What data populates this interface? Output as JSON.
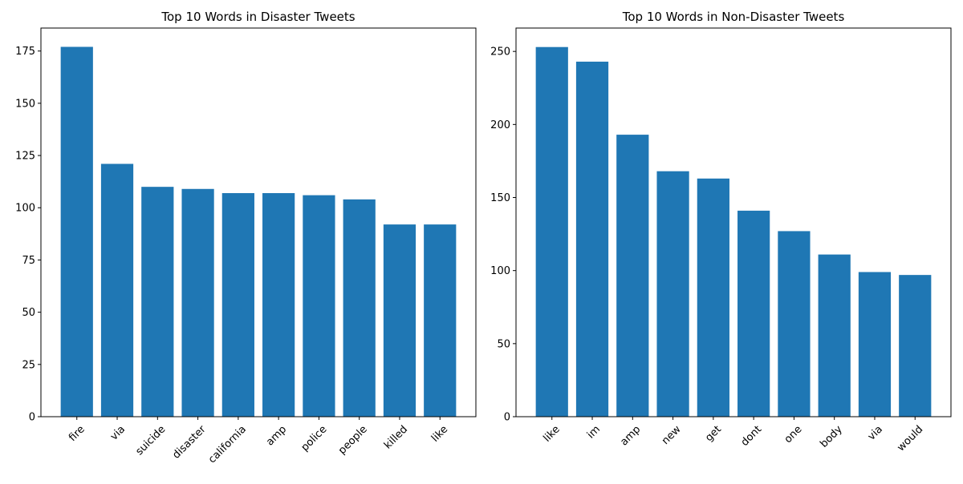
{
  "chart_data": [
    {
      "type": "bar",
      "title": "Top 10 Words in Disaster Tweets",
      "xlabel": "",
      "ylabel": "",
      "categories": [
        "fire",
        "via",
        "suicide",
        "disaster",
        "california",
        "amp",
        "police",
        "people",
        "killed",
        "like"
      ],
      "values": [
        177,
        121,
        110,
        109,
        107,
        107,
        106,
        104,
        92,
        92
      ],
      "ylim": [
        0,
        186
      ],
      "yticks": [
        0,
        25,
        50,
        75,
        100,
        125,
        150,
        175
      ],
      "grid": false,
      "legend": "none",
      "bar_color": "#1f77b4"
    },
    {
      "type": "bar",
      "title": "Top 10 Words in Non-Disaster Tweets",
      "xlabel": "",
      "ylabel": "",
      "categories": [
        "like",
        "im",
        "amp",
        "new",
        "get",
        "dont",
        "one",
        "body",
        "via",
        "would"
      ],
      "values": [
        253,
        243,
        193,
        168,
        163,
        141,
        127,
        111,
        99,
        97
      ],
      "ylim": [
        0,
        266
      ],
      "yticks": [
        0,
        50,
        100,
        150,
        200,
        250
      ],
      "grid": false,
      "legend": "none",
      "bar_color": "#1f77b4"
    }
  ]
}
